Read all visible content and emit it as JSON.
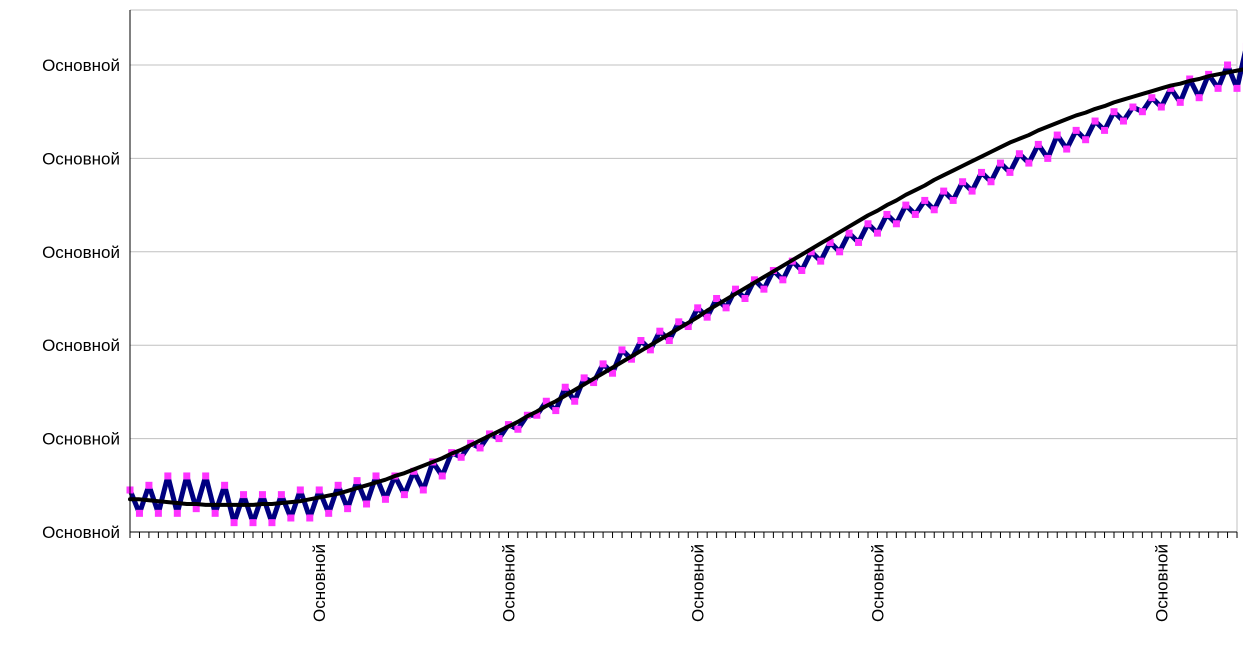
{
  "chart_data": {
    "type": "line",
    "title": "",
    "xlabel": "",
    "ylabel": "",
    "grid": true,
    "legend": "none",
    "y_tick_labels": [
      "Основной",
      "Основной",
      "Основной",
      "Основной",
      "Основной",
      "Основной"
    ],
    "x_tick_labels": [
      {
        "index": 20,
        "label": "Основной"
      },
      {
        "index": 40,
        "label": "Основной"
      },
      {
        "index": 60,
        "label": "Основной"
      },
      {
        "index": 79,
        "label": "Основной"
      },
      {
        "index": 109,
        "label": "Основной"
      }
    ],
    "ylim": [
      0,
      5
    ],
    "xlim": [
      0,
      117
    ],
    "series": [
      {
        "type": "line-with-markers",
        "color": "#000080",
        "marker_color": "#ff33ff",
        "values": [
          0.45,
          0.2,
          0.5,
          0.2,
          0.6,
          0.2,
          0.6,
          0.25,
          0.6,
          0.2,
          0.5,
          0.1,
          0.4,
          0.1,
          0.4,
          0.1,
          0.4,
          0.15,
          0.45,
          0.15,
          0.45,
          0.2,
          0.5,
          0.25,
          0.55,
          0.3,
          0.6,
          0.35,
          0.6,
          0.4,
          0.65,
          0.45,
          0.75,
          0.6,
          0.85,
          0.8,
          0.95,
          0.9,
          1.05,
          1.0,
          1.15,
          1.1,
          1.25,
          1.25,
          1.4,
          1.3,
          1.55,
          1.4,
          1.65,
          1.6,
          1.8,
          1.7,
          1.95,
          1.85,
          2.05,
          1.95,
          2.15,
          2.05,
          2.25,
          2.2,
          2.4,
          2.3,
          2.5,
          2.4,
          2.6,
          2.5,
          2.7,
          2.6,
          2.8,
          2.7,
          2.9,
          2.8,
          3.0,
          2.9,
          3.1,
          3.0,
          3.2,
          3.1,
          3.3,
          3.2,
          3.4,
          3.3,
          3.5,
          3.4,
          3.55,
          3.45,
          3.65,
          3.55,
          3.75,
          3.65,
          3.85,
          3.75,
          3.95,
          3.85,
          4.05,
          3.95,
          4.15,
          4.0,
          4.25,
          4.1,
          4.3,
          4.2,
          4.4,
          4.3,
          4.5,
          4.4,
          4.55,
          4.5,
          4.65,
          4.55,
          4.75,
          4.6,
          4.85,
          4.65,
          4.9,
          4.75,
          5.0,
          4.75,
          5.2
        ]
      },
      {
        "type": "trend",
        "color": "#000000",
        "values": [
          0.35,
          0.35,
          0.34,
          0.33,
          0.32,
          0.31,
          0.3,
          0.3,
          0.29,
          0.29,
          0.29,
          0.29,
          0.29,
          0.29,
          0.3,
          0.3,
          0.31,
          0.32,
          0.33,
          0.35,
          0.37,
          0.39,
          0.41,
          0.44,
          0.47,
          0.5,
          0.53,
          0.56,
          0.6,
          0.63,
          0.67,
          0.71,
          0.75,
          0.79,
          0.84,
          0.88,
          0.93,
          0.98,
          1.03,
          1.08,
          1.13,
          1.18,
          1.24,
          1.29,
          1.35,
          1.4,
          1.46,
          1.52,
          1.58,
          1.64,
          1.7,
          1.76,
          1.82,
          1.88,
          1.94,
          2.0,
          2.06,
          2.12,
          2.18,
          2.24,
          2.3,
          2.37,
          2.43,
          2.49,
          2.55,
          2.61,
          2.67,
          2.73,
          2.79,
          2.85,
          2.91,
          2.97,
          3.03,
          3.09,
          3.15,
          3.21,
          3.27,
          3.33,
          3.39,
          3.44,
          3.5,
          3.55,
          3.61,
          3.66,
          3.71,
          3.77,
          3.82,
          3.87,
          3.92,
          3.97,
          4.02,
          4.07,
          4.12,
          4.17,
          4.21,
          4.25,
          4.3,
          4.34,
          4.38,
          4.42,
          4.46,
          4.49,
          4.53,
          4.56,
          4.6,
          4.63,
          4.66,
          4.69,
          4.72,
          4.75,
          4.78,
          4.8,
          4.83,
          4.85,
          4.88,
          4.9,
          4.92,
          4.94,
          4.96
        ]
      }
    ]
  }
}
